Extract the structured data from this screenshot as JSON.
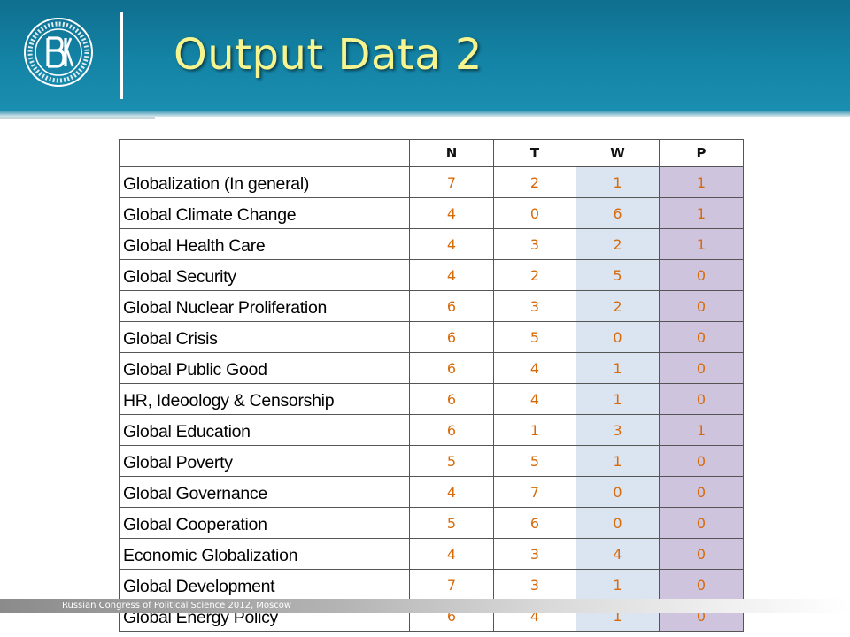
{
  "slide": {
    "title": "Output Data 2",
    "footer": "Russian Congress of Political Science 2012, Moscow",
    "colors": {
      "header": "#1484a6",
      "title": "#f6f48e",
      "value_text": "#d76a0a",
      "w_column": "#dbe5f1",
      "p_column": "#cfc4dd"
    }
  },
  "logo": {
    "icon": "university-seal-icon"
  },
  "table": {
    "corner": "",
    "columns": [
      "N",
      "T",
      "W",
      "P"
    ],
    "rows": [
      {
        "label": "Globalization (In general)",
        "N": "7",
        "T": "2",
        "W": "1",
        "P": "1"
      },
      {
        "label": "Global Climate Change",
        "N": "4",
        "T": "0",
        "W": "6",
        "P": "1"
      },
      {
        "label": "Global Health Care",
        "N": "4",
        "T": "3",
        "W": "2",
        "P": "1"
      },
      {
        "label": "Global Security",
        "N": "4",
        "T": "2",
        "W": "5",
        "P": "0"
      },
      {
        "label": "Global Nuclear Proliferation",
        "N": "6",
        "T": "3",
        "W": "2",
        "P": "0"
      },
      {
        "label": "Global Crisis",
        "N": "6",
        "T": "5",
        "W": "0",
        "P": "0"
      },
      {
        "label": "Global Public Good",
        "N": "6",
        "T": "4",
        "W": "1",
        "P": "0"
      },
      {
        "label": "HR, Ideoology & Censorship",
        "N": "6",
        "T": "4",
        "W": "1",
        "P": "0"
      },
      {
        "label": "Global Education",
        "N": "6",
        "T": "1",
        "W": "3",
        "P": "1"
      },
      {
        "label": "Global Poverty",
        "N": "5",
        "T": "5",
        "W": "1",
        "P": "0"
      },
      {
        "label": "Global Governance",
        "N": "4",
        "T": "7",
        "W": "0",
        "P": "0"
      },
      {
        "label": "Global Cooperation",
        "N": "5",
        "T": "6",
        "W": "0",
        "P": "0"
      },
      {
        "label": "Economic Globalization",
        "N": "4",
        "T": "3",
        "W": "4",
        "P": "0"
      },
      {
        "label": "Global Development",
        "N": "7",
        "T": "3",
        "W": "1",
        "P": "0"
      },
      {
        "label": "Global Energy Policy",
        "N": "6",
        "T": "4",
        "W": "1",
        "P": "0"
      }
    ]
  }
}
